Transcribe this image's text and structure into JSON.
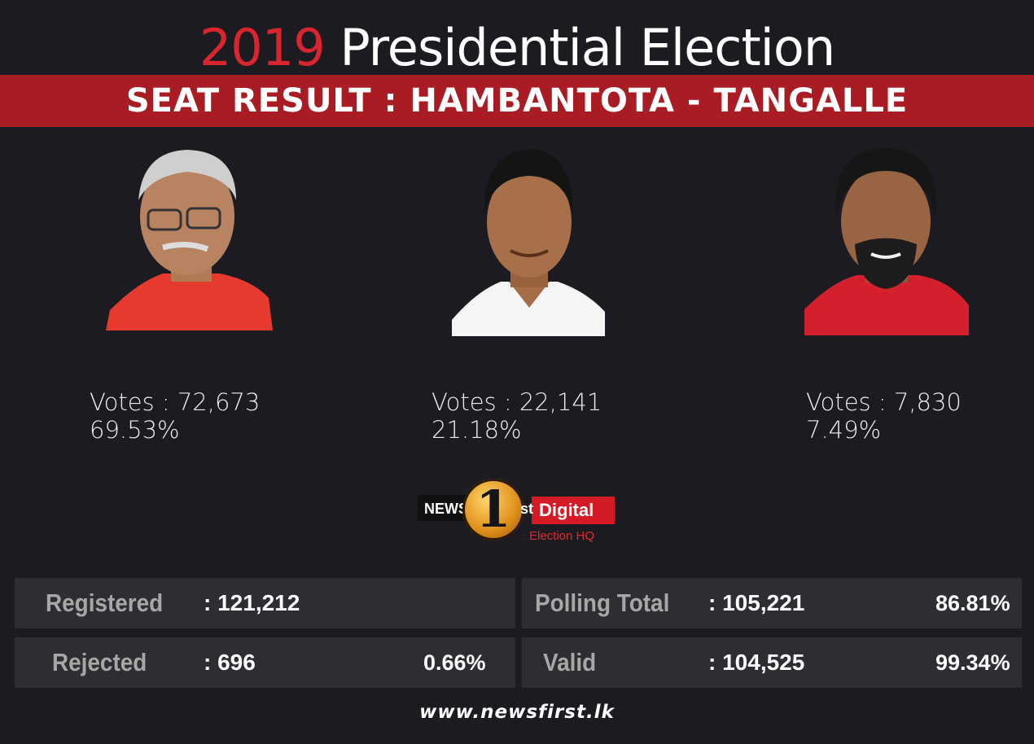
{
  "header": {
    "year": "2019",
    "title": "Presidential Election",
    "banner": "SEAT RESULT : HAMBANTOTA - TANGALLE"
  },
  "candidates": [
    {
      "votes": "Votes : 72,673",
      "percent": "69.53%",
      "shirt_color": "#e63a2e"
    },
    {
      "votes": "Votes : 22,141",
      "percent": "21.18%",
      "shirt_color": "#ffffff"
    },
    {
      "votes": "Votes : 7,830",
      "percent": "7.49%",
      "shirt_color": "#d4202c"
    }
  ],
  "logo": {
    "news": "NEWS",
    "one": "1",
    "st": "st",
    "digital": "Digital",
    "subtitle": "Election HQ"
  },
  "stats": {
    "registered": {
      "label": "Registered",
      "value": ": 121,212"
    },
    "rejected": {
      "label": "Rejected",
      "value": ": 696",
      "percent": "0.66%"
    },
    "polling_total": {
      "label": "Polling Total",
      "value": ": 105,221",
      "percent": "86.81%"
    },
    "valid": {
      "label": "Valid",
      "value": ": 104,525",
      "percent": "99.34%"
    }
  },
  "footer": {
    "url": "www.newsfirst.lk"
  },
  "colors": {
    "background": "#1b1b21",
    "banner": "#a91c24",
    "accent": "#d9262e",
    "stat_box": "#2d2d32"
  }
}
